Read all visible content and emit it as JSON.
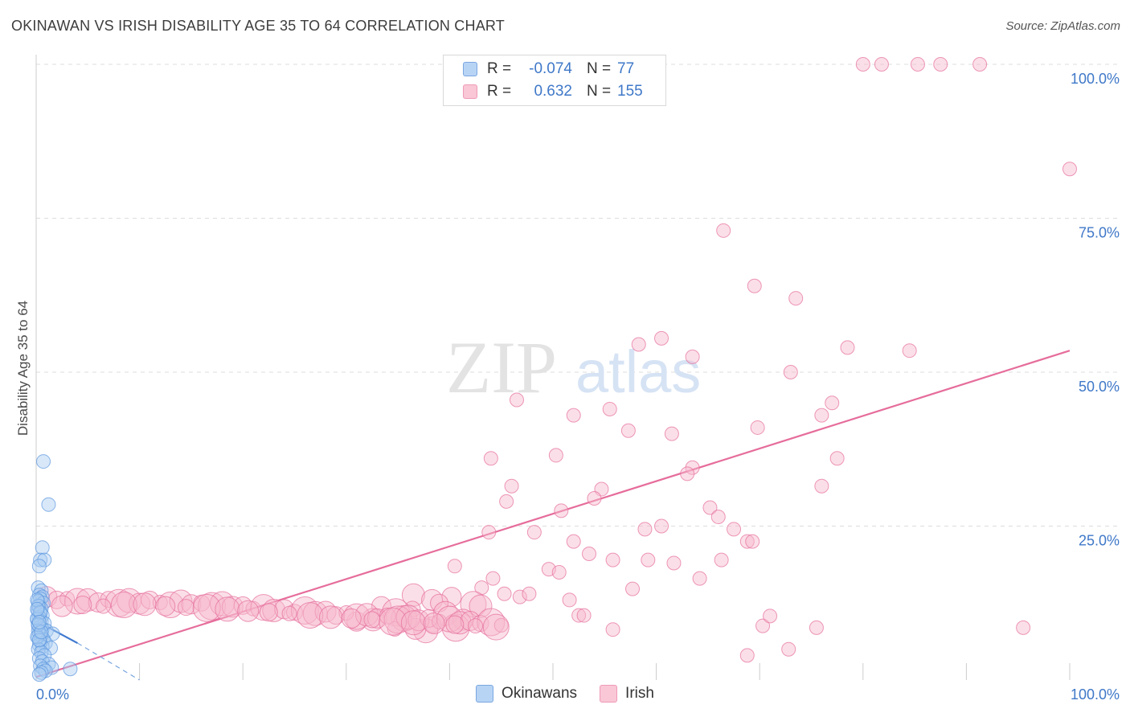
{
  "header": {
    "title": "OKINAWAN VS IRISH DISABILITY AGE 35 TO 64 CORRELATION CHART",
    "source": "Source: ZipAtlas.com"
  },
  "watermark": {
    "zip": "ZIP",
    "atlas": "atlas"
  },
  "legend": {
    "rows": [
      {
        "swatch_fill": "#b8d4f5",
        "swatch_stroke": "#7aa7e0",
        "r_label": "R =",
        "r_value": "-0.074",
        "n_label": "N =",
        "n_value": "77"
      },
      {
        "swatch_fill": "#f9c7d6",
        "swatch_stroke": "#ef9ab6",
        "r_label": "R =",
        "r_value": "0.632",
        "n_label": "N =",
        "n_value": "155"
      }
    ]
  },
  "bottom_legend": [
    {
      "label": "Okinawans",
      "swatch_fill": "#b8d4f5",
      "swatch_stroke": "#7aa7e0"
    },
    {
      "label": "Irish",
      "swatch_fill": "#f9c7d6",
      "swatch_stroke": "#ef9ab6"
    }
  ],
  "chart_data": {
    "type": "scatter",
    "title": "OKINAWAN VS IRISH DISABILITY AGE 35 TO 64 CORRELATION CHART",
    "xlabel": "",
    "ylabel": "Disability Age 35 to 64",
    "xlim": [
      0,
      100
    ],
    "ylim": [
      0,
      100
    ],
    "x_tick_labels": {
      "0": "0.0%",
      "100": "100.0%"
    },
    "y_tick_labels": {
      "25": "25.0%",
      "50": "50.0%",
      "75": "75.0%",
      "100": "100.0%"
    },
    "grid": true,
    "series": [
      {
        "name": "Okinawans",
        "color": "#5b95de",
        "fill": "#a9cbf2",
        "trend": {
          "x": [
            0,
            4
          ],
          "y": [
            9.6,
            6.0
          ],
          "dashed_extension": {
            "x": [
              4,
              10
            ],
            "y": [
              6.0,
              0.0
            ]
          }
        },
        "points": [
          [
            0.7,
            35.5
          ],
          [
            1.2,
            28.5
          ],
          [
            0.6,
            21.5
          ],
          [
            0.4,
            19.5
          ],
          [
            0.8,
            19.5
          ],
          [
            0.3,
            18.5
          ],
          [
            0.2,
            15.0
          ],
          [
            0.5,
            14.5
          ],
          [
            0.3,
            13.8
          ],
          [
            0.6,
            13.5
          ],
          [
            0.4,
            13.2
          ],
          [
            0.2,
            12.8
          ],
          [
            0.7,
            12.5
          ],
          [
            0.3,
            12.0
          ],
          [
            0.5,
            11.6
          ],
          [
            0.2,
            11.2
          ],
          [
            0.4,
            10.8
          ],
          [
            0.6,
            10.5
          ],
          [
            0.3,
            10.2
          ],
          [
            0.1,
            9.8
          ],
          [
            0.5,
            9.5
          ],
          [
            0.8,
            9.2
          ],
          [
            0.2,
            8.9
          ],
          [
            0.4,
            8.6
          ],
          [
            0.6,
            8.3
          ],
          [
            1.0,
            8.0
          ],
          [
            0.3,
            7.7
          ],
          [
            1.6,
            7.5
          ],
          [
            0.5,
            7.2
          ],
          [
            0.2,
            6.9
          ],
          [
            0.7,
            6.6
          ],
          [
            0.4,
            6.3
          ],
          [
            0.9,
            6.0
          ],
          [
            0.3,
            5.7
          ],
          [
            0.6,
            5.4
          ],
          [
            1.4,
            5.2
          ],
          [
            0.2,
            5.0
          ],
          [
            0.5,
            4.5
          ],
          [
            0.8,
            4.0
          ],
          [
            0.3,
            3.5
          ],
          [
            0.6,
            3.0
          ],
          [
            1.2,
            2.6
          ],
          [
            0.4,
            2.3
          ],
          [
            1.5,
            2.0
          ],
          [
            0.7,
            1.8
          ],
          [
            0.9,
            1.5
          ],
          [
            3.3,
            1.8
          ],
          [
            0.5,
            1.2
          ],
          [
            0.3,
            0.9
          ],
          [
            0.1,
            10.0
          ],
          [
            0.2,
            8.0
          ],
          [
            0.1,
            7.0
          ],
          [
            0.3,
            6.5
          ],
          [
            0.2,
            12.0
          ],
          [
            0.1,
            13.0
          ],
          [
            0.4,
            11.0
          ],
          [
            0.2,
            9.0
          ],
          [
            0.5,
            7.8
          ],
          [
            0.1,
            11.5
          ],
          [
            0.3,
            9.4
          ]
        ]
      },
      {
        "name": "Irish",
        "color": "#e66d9b",
        "fill": "#f7b8cd",
        "trend": {
          "x": [
            0,
            100
          ],
          "y": [
            0.5,
            53.5
          ]
        },
        "points": [
          [
            80,
            100
          ],
          [
            81.8,
            100
          ],
          [
            85.3,
            100
          ],
          [
            87.5,
            100
          ],
          [
            91.3,
            100
          ],
          [
            100,
            83
          ],
          [
            66.5,
            73
          ],
          [
            69.5,
            64
          ],
          [
            73.5,
            62
          ],
          [
            60.5,
            55.5
          ],
          [
            58.3,
            54.5
          ],
          [
            63.5,
            52.5
          ],
          [
            78.5,
            54
          ],
          [
            84.5,
            53.5
          ],
          [
            73,
            50
          ],
          [
            46.5,
            45.5
          ],
          [
            77,
            45
          ],
          [
            52,
            43
          ],
          [
            55.5,
            44
          ],
          [
            57.3,
            40.5
          ],
          [
            69.8,
            41
          ],
          [
            61.5,
            40
          ],
          [
            76,
            43
          ],
          [
            44,
            36
          ],
          [
            50.3,
            36.5
          ],
          [
            63.5,
            34.5
          ],
          [
            63,
            33.5
          ],
          [
            77.5,
            36
          ],
          [
            46,
            31.5
          ],
          [
            54.7,
            31
          ],
          [
            76,
            31.5
          ],
          [
            45.5,
            29
          ],
          [
            54,
            29.5
          ],
          [
            65.2,
            28
          ],
          [
            50.8,
            27.5
          ],
          [
            66,
            26.5
          ],
          [
            60.5,
            25
          ],
          [
            67.5,
            24.5
          ],
          [
            43.8,
            24
          ],
          [
            48.2,
            24
          ],
          [
            58.9,
            24.5
          ],
          [
            52,
            22.5
          ],
          [
            68.8,
            22.5
          ],
          [
            69.3,
            22.5
          ],
          [
            53.5,
            20.5
          ],
          [
            55.8,
            19.5
          ],
          [
            59.2,
            19.5
          ],
          [
            66.3,
            19.5
          ],
          [
            61.7,
            19
          ],
          [
            40.5,
            18.5
          ],
          [
            49.6,
            18
          ],
          [
            50.6,
            17.5
          ],
          [
            64.2,
            16.5
          ],
          [
            44.2,
            16.5
          ],
          [
            43.1,
            15
          ],
          [
            57.7,
            14.8
          ],
          [
            36.5,
            13.8
          ],
          [
            40.2,
            13.5
          ],
          [
            45.3,
            14
          ],
          [
            46.8,
            13.5
          ],
          [
            47.7,
            14
          ],
          [
            38.3,
            13
          ],
          [
            39,
            12.5
          ],
          [
            51.6,
            13
          ],
          [
            42.3,
            12.3
          ],
          [
            43,
            12
          ],
          [
            33.4,
            12
          ],
          [
            36.4,
            11.5
          ],
          [
            34.8,
            11
          ],
          [
            39.6,
            10.8
          ],
          [
            41.3,
            9.8
          ],
          [
            52.5,
            10.5
          ],
          [
            53,
            10.5
          ],
          [
            35.6,
            10
          ],
          [
            32.6,
            9.8
          ],
          [
            31,
            9.5
          ],
          [
            38.4,
            9
          ],
          [
            40.6,
            8.5
          ],
          [
            37.7,
            8
          ],
          [
            36.7,
            8.3
          ],
          [
            55.8,
            8.2
          ],
          [
            34.7,
            8.3
          ],
          [
            70.3,
            8.8
          ],
          [
            71,
            10.4
          ],
          [
            75.5,
            8.5
          ],
          [
            95.5,
            8.5
          ],
          [
            68.8,
            4
          ],
          [
            72.8,
            5
          ],
          [
            1,
            13.5
          ],
          [
            2,
            13
          ],
          [
            3,
            13.2
          ],
          [
            4,
            12.8
          ],
          [
            5,
            13
          ],
          [
            6,
            12.6
          ],
          [
            7,
            13.1
          ],
          [
            8,
            12.5
          ],
          [
            9,
            12.9
          ],
          [
            10,
            12.4
          ],
          [
            11,
            13
          ],
          [
            12,
            12.6
          ],
          [
            13,
            12.2
          ],
          [
            14,
            12.8
          ],
          [
            15,
            12.3
          ],
          [
            16,
            12.5
          ],
          [
            17,
            12
          ],
          [
            18,
            12.4
          ],
          [
            19,
            11.9
          ],
          [
            20,
            12.1
          ],
          [
            21,
            11.6
          ],
          [
            22,
            11.8
          ],
          [
            23,
            11.3
          ],
          [
            24,
            11.5
          ],
          [
            25,
            11
          ],
          [
            26,
            11.3
          ],
          [
            27,
            10.8
          ],
          [
            28,
            11.1
          ],
          [
            29,
            10.5
          ],
          [
            30,
            10.9
          ],
          [
            31,
            10.3
          ],
          [
            32,
            10.6
          ],
          [
            33,
            10
          ],
          [
            34,
            10.4
          ],
          [
            35,
            9.8
          ],
          [
            36,
            10.2
          ],
          [
            37,
            9.7
          ],
          [
            38,
            10
          ],
          [
            39,
            9.5
          ],
          [
            40,
            9.9
          ],
          [
            41,
            9.3
          ],
          [
            42,
            9.6
          ],
          [
            43,
            9.2
          ],
          [
            44,
            9.4
          ],
          [
            45,
            8.9
          ],
          [
            2.5,
            12.0
          ],
          [
            4.5,
            12.2
          ],
          [
            6.5,
            12.0
          ],
          [
            8.5,
            12.2
          ],
          [
            10.5,
            12.3
          ],
          [
            12.5,
            12.0
          ],
          [
            14.5,
            11.8
          ],
          [
            16.5,
            11.7
          ],
          [
            18.5,
            11.5
          ],
          [
            20.5,
            11.2
          ],
          [
            22.5,
            11.0
          ],
          [
            24.5,
            10.8
          ],
          [
            26.5,
            10.5
          ],
          [
            28.5,
            10.2
          ],
          [
            30.5,
            10.0
          ],
          [
            32.5,
            9.8
          ],
          [
            34.5,
            9.5
          ],
          [
            36.5,
            9.3
          ],
          [
            38.5,
            9.2
          ],
          [
            40.5,
            9.0
          ],
          [
            42.5,
            8.8
          ],
          [
            44.5,
            8.6
          ]
        ]
      }
    ]
  }
}
